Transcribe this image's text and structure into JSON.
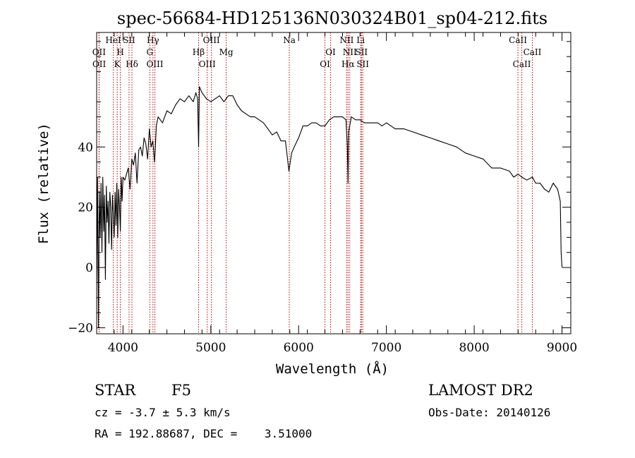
{
  "title": "spec-56684-HD125136N030324B01_sp04-212.fits",
  "footer": {
    "object_class": "STAR",
    "subclass": "F5",
    "survey": "LAMOST DR2",
    "cz": "cz = -3.7 ± 5.3 km/s",
    "obs_date": "Obs-Date: 20140126",
    "coords": "RA = 192.88687, DEC =    3.51000"
  },
  "colors": {
    "spectrum": "#000000",
    "line_markers": "#c00000",
    "axes": "#000000"
  },
  "chart_data": {
    "type": "line",
    "title": "spec-56684-HD125136N030324B01_sp04-212.fits",
    "xlabel": "Wavelength (Å)",
    "ylabel": "Flux (relative)",
    "xlim": [
      3700,
      9100
    ],
    "ylim": [
      -22,
      78
    ],
    "x_ticks": [
      4000,
      5000,
      6000,
      7000,
      8000,
      9000
    ],
    "x_tick_labels": [
      "4000",
      "5000",
      "6000",
      "7000",
      "8000",
      "9000"
    ],
    "y_ticks": [
      -20,
      0,
      20,
      40
    ],
    "y_tick_labels": [
      "−20",
      "0",
      "20",
      "40"
    ],
    "grid": false,
    "series": [
      {
        "x": [
          3700,
          3710,
          3720,
          3730,
          3740,
          3750,
          3760,
          3770,
          3780,
          3790,
          3800,
          3810,
          3820,
          3830,
          3840,
          3850,
          3860,
          3870,
          3880,
          3890,
          3900,
          3910,
          3920,
          3930,
          3940,
          3950,
          3960,
          3970,
          3980,
          3990,
          4000,
          4020,
          4040,
          4060,
          4080,
          4100,
          4120,
          4140,
          4160,
          4180,
          4200,
          4220,
          4240,
          4260,
          4280,
          4300,
          4320,
          4340,
          4360,
          4380,
          4400,
          4450,
          4500,
          4550,
          4600,
          4650,
          4700,
          4750,
          4800,
          4830,
          4850,
          4861,
          4870,
          4900,
          4950,
          5000,
          5050,
          5100,
          5150,
          5200,
          5250,
          5300,
          5350,
          5400,
          5450,
          5500,
          5550,
          5600,
          5650,
          5700,
          5750,
          5800,
          5850,
          5890,
          5920,
          5950,
          6000,
          6050,
          6100,
          6150,
          6200,
          6250,
          6300,
          6350,
          6400,
          6450,
          6500,
          6540,
          6555,
          6563,
          6570,
          6600,
          6650,
          6700,
          6750,
          6800,
          6850,
          6900,
          6950,
          7000,
          7100,
          7200,
          7300,
          7400,
          7500,
          7600,
          7700,
          7800,
          7900,
          8000,
          8100,
          8200,
          8300,
          8400,
          8450,
          8500,
          8542,
          8600,
          8662,
          8700,
          8750,
          8800,
          8850,
          8900,
          8950,
          8980,
          8990,
          9000
        ],
        "y": [
          -5,
          30,
          -20,
          25,
          10,
          28,
          5,
          30,
          12,
          24,
          -4,
          27,
          15,
          22,
          8,
          25,
          20,
          6,
          24,
          18,
          10,
          25,
          14,
          28,
          10,
          26,
          20,
          12,
          30,
          22,
          30,
          29,
          31,
          33,
          26,
          36,
          34,
          38,
          28,
          39,
          40,
          37,
          43,
          41,
          36,
          46,
          40,
          42,
          35,
          47,
          50,
          48,
          52,
          51,
          54,
          56,
          55,
          57,
          55,
          58,
          56,
          40,
          60,
          58,
          56,
          55,
          56,
          57,
          55,
          57,
          57,
          54,
          52,
          51,
          50,
          50,
          49,
          48,
          46,
          44,
          45,
          42,
          42,
          32,
          38,
          40,
          43,
          47,
          47,
          48,
          48,
          47,
          47,
          49,
          50,
          50,
          50,
          49,
          40,
          28,
          45,
          50,
          49,
          49,
          48,
          48,
          48,
          48,
          47,
          48,
          46,
          46,
          45,
          44,
          43,
          42,
          41,
          40,
          38,
          37,
          36,
          33,
          33,
          32,
          30,
          31,
          30,
          29,
          30,
          28,
          28,
          26,
          25,
          28,
          26,
          22,
          5,
          0
        ]
      }
    ],
    "spectral_lines": [
      {
        "label": "OII",
        "wavelength": 3727,
        "row": 1
      },
      {
        "label": "OII",
        "wavelength": 3729,
        "row": 2
      },
      {
        "label": "HeI",
        "wavelength": 3889,
        "row": 0
      },
      {
        "label": "H",
        "wavelength": 3969,
        "row": 1
      },
      {
        "label": "K",
        "wavelength": 3934,
        "row": 2
      },
      {
        "label": "SII",
        "wavelength": 4069,
        "row": 0
      },
      {
        "label": "Hδ",
        "wavelength": 4102,
        "row": 2
      },
      {
        "label": "Hγ",
        "wavelength": 4341,
        "row": 0
      },
      {
        "label": "G",
        "wavelength": 4305,
        "row": 1
      },
      {
        "label": "OIII",
        "wavelength": 4363,
        "row": 2
      },
      {
        "label": "OIII",
        "wavelength": 5007,
        "row": 0
      },
      {
        "label": "Hβ",
        "wavelength": 4861,
        "row": 1
      },
      {
        "label": "OIII",
        "wavelength": 4959,
        "row": 2
      },
      {
        "label": "Mg",
        "wavelength": 5175,
        "row": 1
      },
      {
        "label": "Na",
        "wavelength": 5894,
        "row": 0
      },
      {
        "label": "OI",
        "wavelength": 6364,
        "row": 1
      },
      {
        "label": "OI",
        "wavelength": 6300,
        "row": 2
      },
      {
        "label": "NII",
        "wavelength": 6548,
        "row": 0
      },
      {
        "label": "NII",
        "wavelength": 6583,
        "row": 1
      },
      {
        "label": "Hα",
        "wavelength": 6563,
        "row": 2
      },
      {
        "label": "Li",
        "wavelength": 6707,
        "row": 0
      },
      {
        "label": "SII",
        "wavelength": 6716,
        "row": 1
      },
      {
        "label": "SII",
        "wavelength": 6731,
        "row": 2
      },
      {
        "label": "CaII",
        "wavelength": 8498,
        "row": 0
      },
      {
        "label": "CaII",
        "wavelength": 8542,
        "row": 2
      },
      {
        "label": "CaII",
        "wavelength": 8662,
        "row": 1
      }
    ]
  }
}
